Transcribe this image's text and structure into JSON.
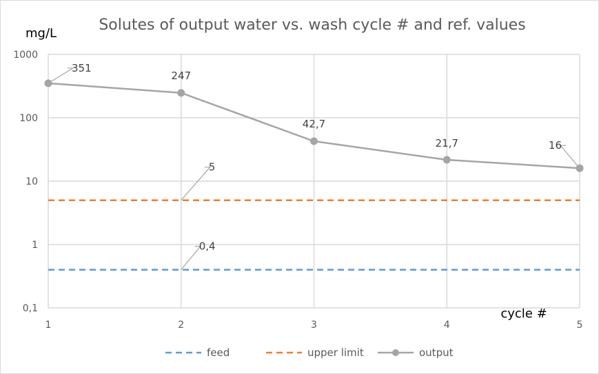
{
  "chart_data": {
    "type": "line",
    "title": "Solutes of output water vs. wash cycle # and ref. values",
    "ylabel": "mg/L",
    "xlabel": "cycle #",
    "yscale": "log",
    "ylim": [
      0.1,
      1000
    ],
    "y_ticks": [
      "0,1",
      "1",
      "10",
      "100",
      "1000"
    ],
    "y_tick_values": [
      0.1,
      1,
      10,
      100,
      1000
    ],
    "x_ticks": [
      "1",
      "2",
      "3",
      "4",
      "5"
    ],
    "x": [
      1,
      2,
      3,
      4,
      5
    ],
    "grid": true,
    "legend_position": "bottom",
    "series": [
      {
        "name": "feed",
        "values": [
          0.4,
          0.4,
          0.4,
          0.4,
          0.4
        ],
        "color": "#5b9bd5",
        "style": "dashed",
        "marker": "none",
        "data_labels": [
          {
            "index": 1,
            "text": "0,4"
          }
        ]
      },
      {
        "name": "upper limit",
        "values": [
          5,
          5,
          5,
          5,
          5
        ],
        "color": "#ed7d31",
        "style": "dashed",
        "marker": "none",
        "data_labels": [
          {
            "index": 1,
            "text": "5"
          }
        ]
      },
      {
        "name": "output",
        "values": [
          351,
          247,
          42.7,
          21.7,
          16
        ],
        "color": "#a5a5a5",
        "style": "solid",
        "marker": "circle",
        "data_labels": [
          {
            "index": 0,
            "text": "351"
          },
          {
            "index": 1,
            "text": "247"
          },
          {
            "index": 2,
            "text": "42,7"
          },
          {
            "index": 3,
            "text": "21,7"
          },
          {
            "index": 4,
            "text": "16"
          }
        ]
      }
    ]
  }
}
